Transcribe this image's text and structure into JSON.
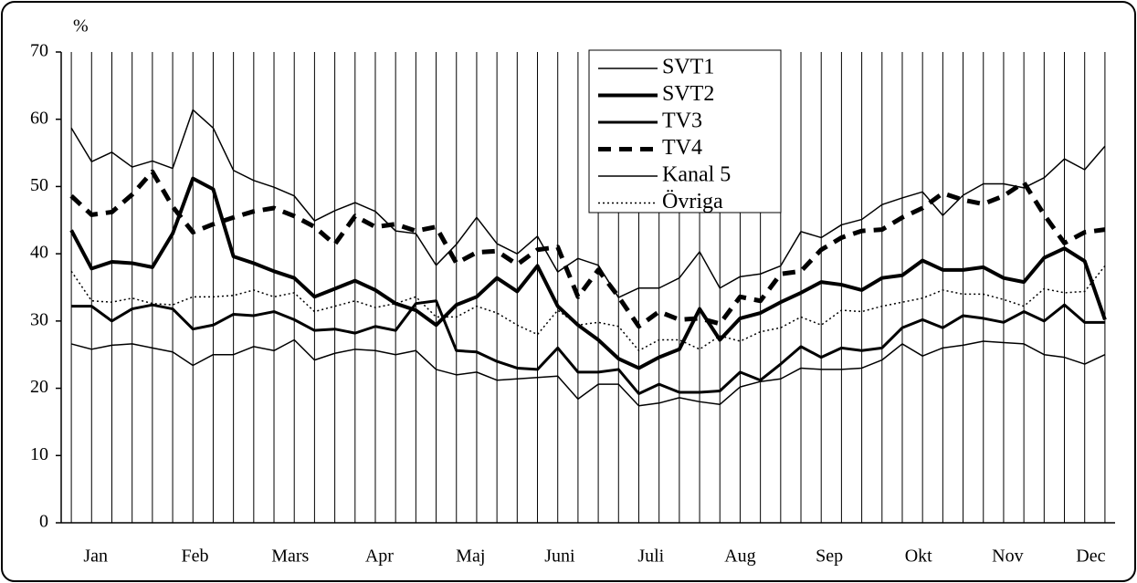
{
  "chart_data": {
    "type": "line",
    "ylabel": "%",
    "x": [
      1,
      2,
      3,
      4,
      5,
      6,
      7,
      8,
      9,
      10,
      11,
      12,
      13,
      14,
      15,
      16,
      17,
      18,
      19,
      20,
      21,
      22,
      23,
      24,
      25,
      26,
      27,
      28,
      29,
      30,
      31,
      32,
      33,
      34,
      35,
      36,
      37,
      38,
      39,
      40,
      41,
      42,
      43,
      44,
      45,
      46,
      47,
      48,
      49,
      50,
      51,
      52
    ],
    "xlim": [
      0.5,
      52.5
    ],
    "xticks": [
      {
        "value": 2.2,
        "label": "Jan"
      },
      {
        "value": 7.1,
        "label": "Feb"
      },
      {
        "value": 11.8,
        "label": "Mars"
      },
      {
        "value": 16.2,
        "label": "Apr"
      },
      {
        "value": 20.7,
        "label": "Maj"
      },
      {
        "value": 25.1,
        "label": "Juni"
      },
      {
        "value": 29.6,
        "label": "Juli"
      },
      {
        "value": 34.0,
        "label": "Aug"
      },
      {
        "value": 38.4,
        "label": "Sep"
      },
      {
        "value": 42.8,
        "label": "Okt"
      },
      {
        "value": 47.2,
        "label": "Nov"
      },
      {
        "value": 51.3,
        "label": "Dec"
      }
    ],
    "ylim": [
      0,
      70
    ],
    "yticks": [
      0,
      10,
      20,
      30,
      40,
      50,
      60,
      70
    ],
    "grid": "x",
    "legend": "top",
    "series": [
      {
        "name": "SVT1",
        "color": "#000000",
        "style": "thin",
        "values": [
          58.7,
          53.7,
          55.1,
          52.9,
          53.8,
          52.7,
          61.4,
          58.7,
          52.4,
          50.9,
          49.9,
          48.6,
          44.9,
          46.4,
          47.6,
          46.3,
          43.4,
          43.0,
          38.3,
          41.4,
          45.4,
          41.5,
          40.0,
          42.6,
          37.3,
          39.3,
          38.3,
          33.5,
          34.9,
          34.9,
          36.4,
          40.3,
          34.9,
          36.6,
          37.0,
          38.2,
          43.3,
          42.4,
          44.3,
          45.1,
          47.3,
          48.3,
          49.2,
          45.7,
          48.7,
          50.4,
          50.4,
          49.8,
          51.3,
          54.1,
          52.5,
          56.0
        ]
      },
      {
        "name": "SVT2",
        "color": "#000000",
        "style": "thick",
        "values": [
          43.5,
          37.8,
          38.8,
          38.6,
          38.0,
          43.0,
          51.2,
          49.6,
          39.6,
          38.6,
          37.4,
          36.4,
          33.6,
          34.8,
          36.0,
          34.6,
          32.6,
          31.6,
          29.4,
          32.4,
          33.6,
          36.4,
          34.4,
          38.2,
          32.2,
          29.4,
          27.2,
          24.4,
          23.0,
          24.6,
          25.8,
          31.8,
          27.2,
          30.4,
          31.2,
          32.8,
          34.2,
          35.8,
          35.4,
          34.6,
          36.4,
          36.8,
          39.0,
          37.6,
          37.6,
          38.0,
          36.4,
          35.8,
          39.4,
          40.8,
          38.9,
          30.2
        ]
      },
      {
        "name": "TV3",
        "color": "#000000",
        "style": "medium",
        "values": [
          32.2,
          32.2,
          30.0,
          31.8,
          32.4,
          31.8,
          28.8,
          29.4,
          31.0,
          30.8,
          31.4,
          30.2,
          28.6,
          28.8,
          28.2,
          29.2,
          28.6,
          32.6,
          33.0,
          25.6,
          25.4,
          24.0,
          23.0,
          22.8,
          26.0,
          22.4,
          22.4,
          22.8,
          19.2,
          20.6,
          19.4,
          19.4,
          19.6,
          22.4,
          21.2,
          23.6,
          26.2,
          24.6,
          26.0,
          25.6,
          26.0,
          29.0,
          30.2,
          29.0,
          30.8,
          30.4,
          29.8,
          31.4,
          30.0,
          32.4,
          29.8,
          29.8
        ]
      },
      {
        "name": "TV4",
        "color": "#000000",
        "style": "dashed",
        "values": [
          48.6,
          45.8,
          46.2,
          48.8,
          52.2,
          47.0,
          43.2,
          44.4,
          45.4,
          46.3,
          46.8,
          45.6,
          44.0,
          41.4,
          45.6,
          44.0,
          44.4,
          43.4,
          44.0,
          38.6,
          40.2,
          40.4,
          38.4,
          40.6,
          41.0,
          33.6,
          37.6,
          33.6,
          29.2,
          31.4,
          30.2,
          30.4,
          29.6,
          33.6,
          33.0,
          37.0,
          37.4,
          40.6,
          42.4,
          43.4,
          43.6,
          45.4,
          46.8,
          49.0,
          48.0,
          47.4,
          48.6,
          50.6,
          45.8,
          41.6,
          43.2,
          43.6
        ]
      },
      {
        "name": "Kanal 5",
        "color": "#000000",
        "style": "thin",
        "values": [
          26.6,
          25.8,
          26.4,
          26.6,
          26.0,
          25.4,
          23.4,
          25.0,
          25.0,
          26.2,
          25.6,
          27.2,
          24.2,
          25.2,
          25.8,
          25.6,
          25.0,
          25.6,
          22.8,
          22.0,
          22.4,
          21.2,
          21.4,
          21.6,
          21.8,
          18.4,
          20.6,
          20.6,
          17.4,
          17.8,
          18.6,
          18.0,
          17.6,
          20.2,
          21.0,
          21.4,
          23.0,
          22.8,
          22.8,
          23.0,
          24.2,
          26.6,
          24.8,
          26.0,
          26.4,
          27.0,
          26.8,
          26.6,
          25.0,
          24.6,
          23.6,
          25.0
        ]
      },
      {
        "name": "Övriga",
        "color": "#000000",
        "style": "dotted",
        "values": [
          37.4,
          33.0,
          32.8,
          33.4,
          32.6,
          32.4,
          33.6,
          33.6,
          33.8,
          34.6,
          33.6,
          34.2,
          31.4,
          32.2,
          33.0,
          32.0,
          32.6,
          33.6,
          30.6,
          30.6,
          32.2,
          31.2,
          29.4,
          28.0,
          31.6,
          29.4,
          29.8,
          29.2,
          25.6,
          27.2,
          27.2,
          25.8,
          27.8,
          27.0,
          28.4,
          29.0,
          30.6,
          29.4,
          31.6,
          31.4,
          32.2,
          32.8,
          33.4,
          34.6,
          34.0,
          34.0,
          33.2,
          32.2,
          34.8,
          34.2,
          34.4,
          38.2
        ]
      }
    ]
  }
}
